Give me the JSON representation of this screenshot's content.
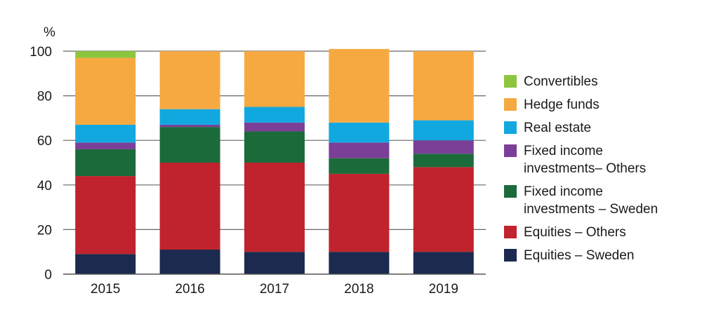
{
  "chart_data": {
    "type": "bar",
    "stacked": true,
    "unit_label": "%",
    "categories": [
      "2015",
      "2016",
      "2017",
      "2018",
      "2019"
    ],
    "ylim": [
      0,
      100
    ],
    "yticks": [
      0,
      20,
      40,
      60,
      80,
      100
    ],
    "grid": true,
    "legend_position": "right",
    "series": [
      {
        "name": "Equities – Sweden",
        "color": "#1b2a4e",
        "values": [
          9,
          11,
          10,
          10,
          10
        ]
      },
      {
        "name": "Equities – Others",
        "color": "#c0232d",
        "values": [
          35,
          39,
          40,
          35,
          38
        ]
      },
      {
        "name": "Fixed income investments – Sweden",
        "color": "#1b6b3a",
        "values": [
          12,
          16,
          14,
          7,
          6
        ]
      },
      {
        "name": "Fixed income investments– Others",
        "color": "#7b3f98",
        "values": [
          3,
          1,
          4,
          7,
          6
        ]
      },
      {
        "name": "Real estate",
        "color": "#11a8e0",
        "values": [
          8,
          7,
          7,
          9,
          9
        ]
      },
      {
        "name": "Hedge funds",
        "color": "#f7a941",
        "values": [
          30,
          26,
          25,
          33,
          31
        ]
      },
      {
        "name": "Convertibles",
        "color": "#8cc63f",
        "values": [
          3,
          0,
          0,
          0,
          0
        ]
      }
    ]
  },
  "legend": [
    {
      "label": "Convertibles",
      "color": "#8cc63f"
    },
    {
      "label": "Hedge funds",
      "color": "#f7a941"
    },
    {
      "label": "Real estate",
      "color": "#11a8e0"
    },
    {
      "label": "Fixed income\ninvestments– Others",
      "color": "#7b3f98"
    },
    {
      "label": "Fixed income\ninvestments – Sweden",
      "color": "#1b6b3a"
    },
    {
      "label": "Equities – Others",
      "color": "#c0232d"
    },
    {
      "label": "Equities – Sweden",
      "color": "#1b2a4e"
    }
  ]
}
